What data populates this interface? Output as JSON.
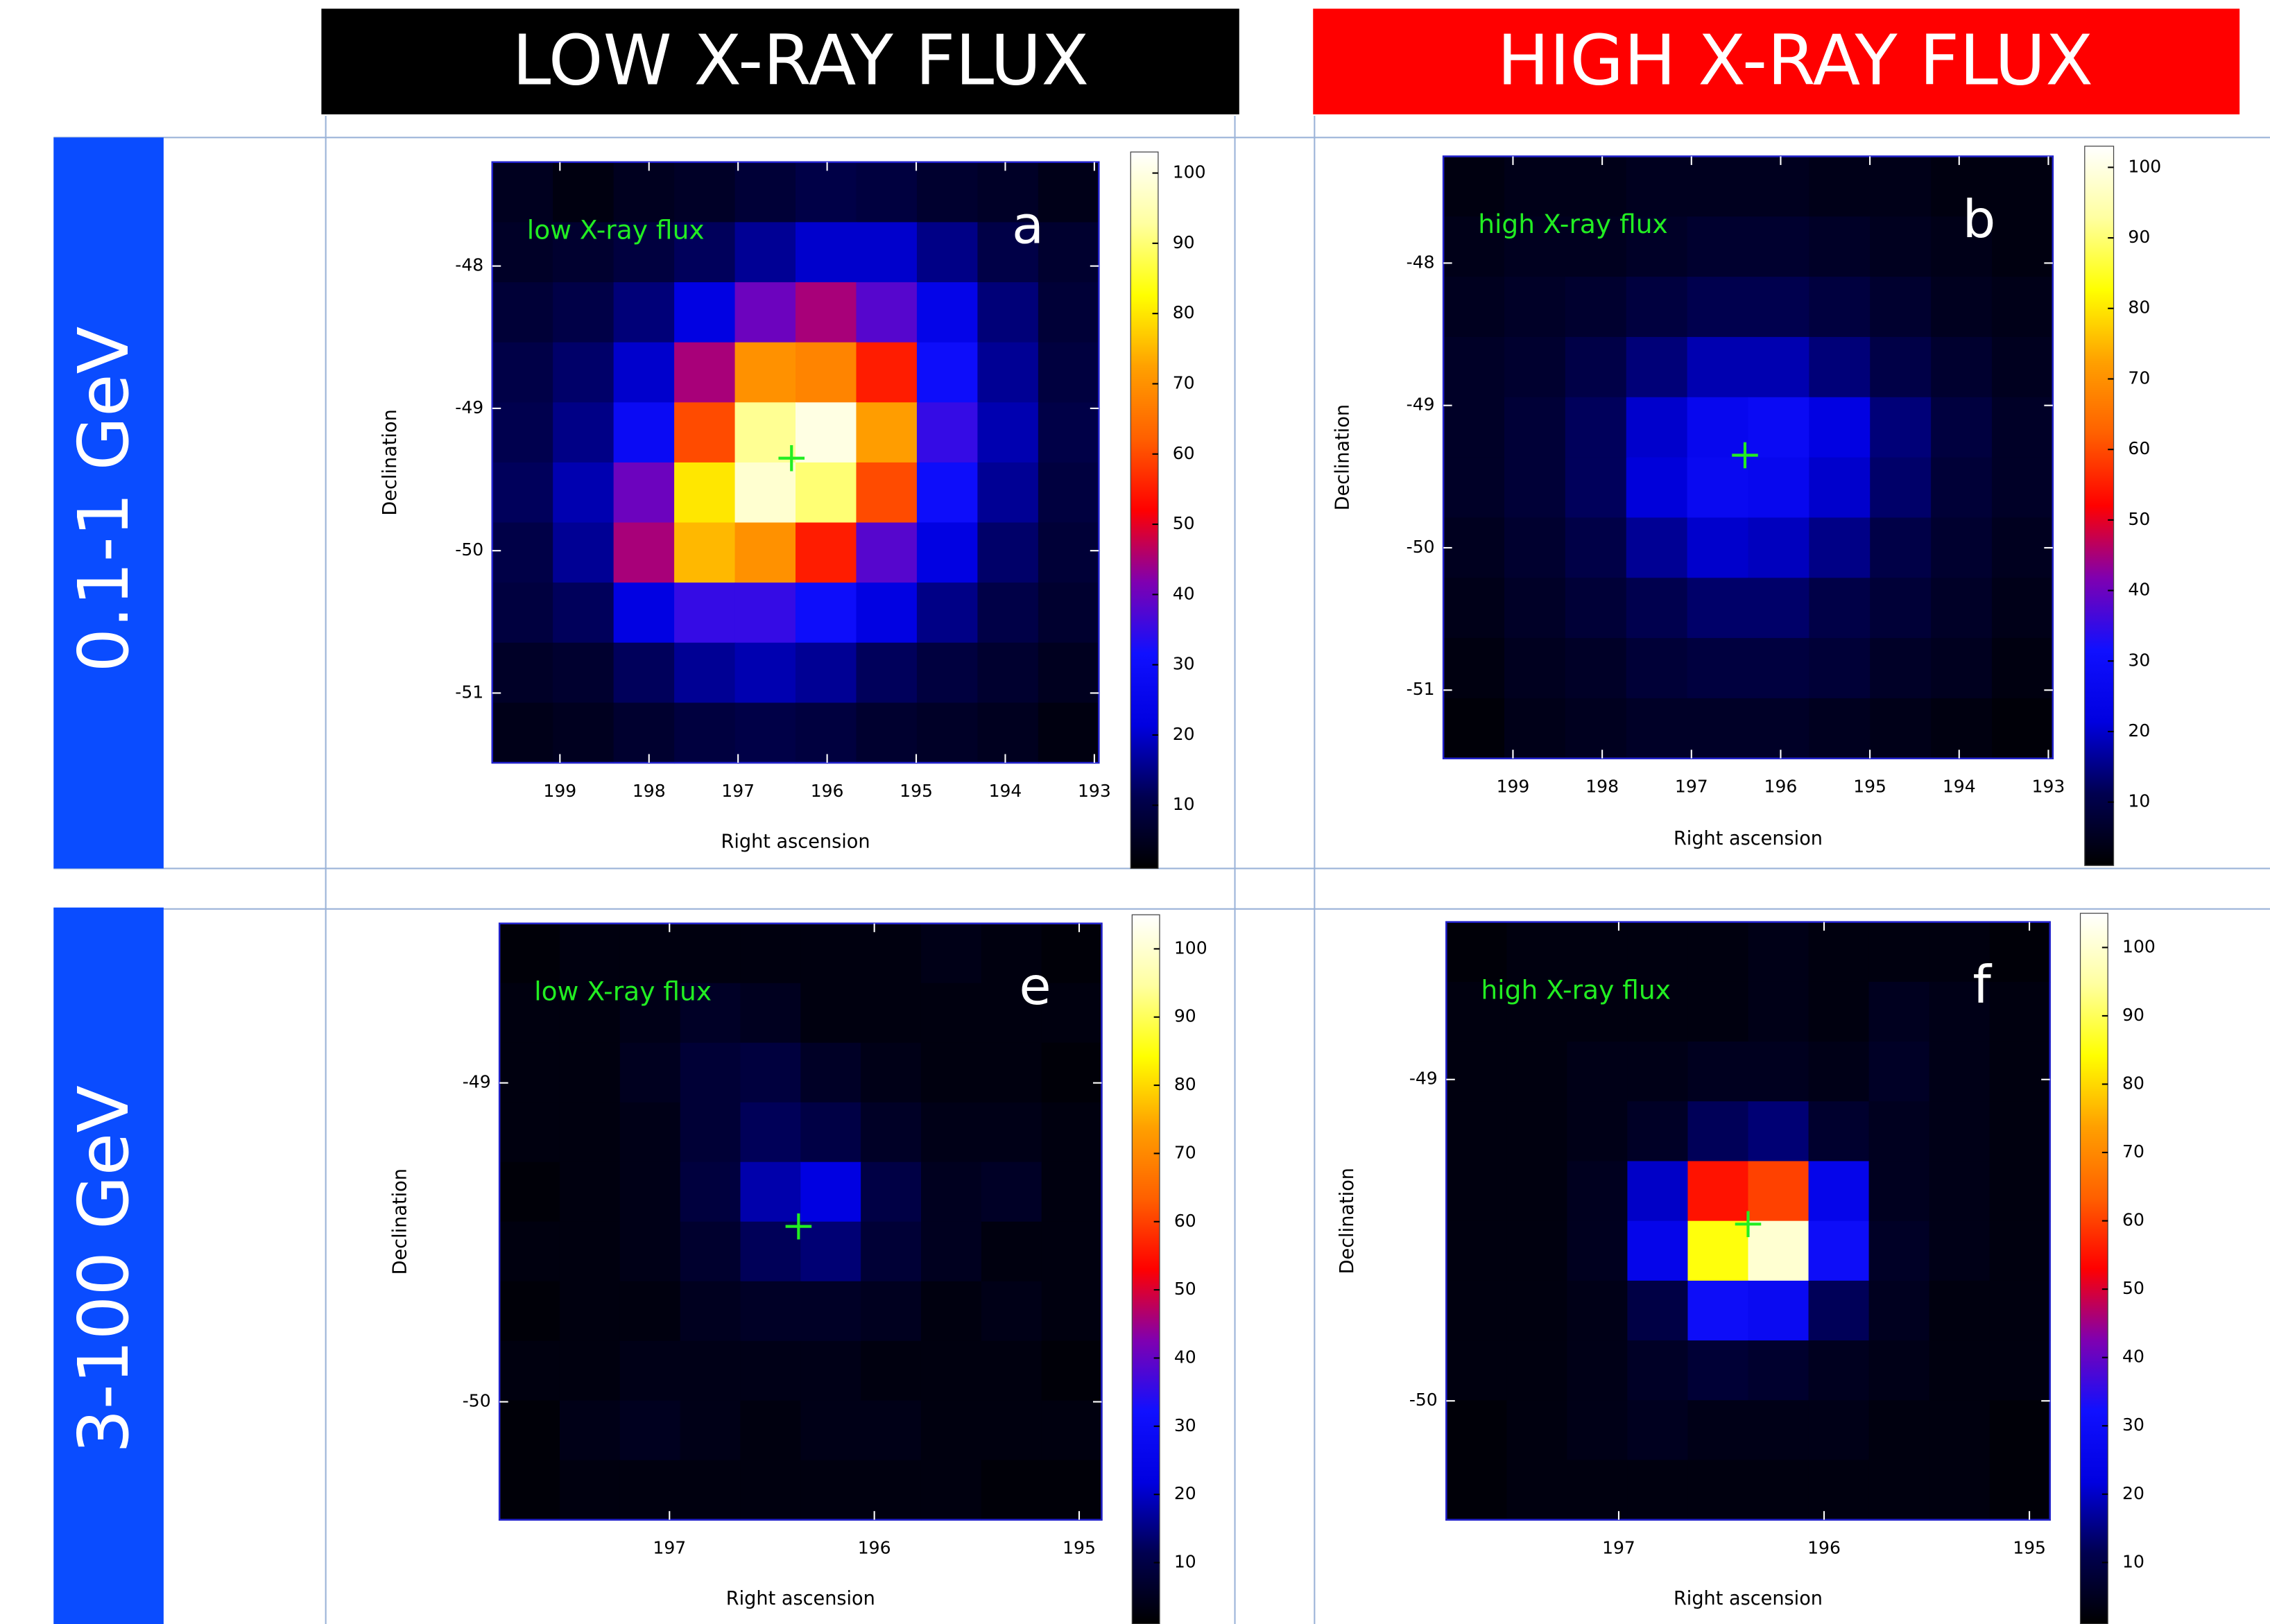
{
  "column_headers": [
    "LOW X-RAY FLUX",
    "HIGH X-RAY FLUX"
  ],
  "row_headers": [
    "0.1-1 GeV",
    "3-100 GeV"
  ],
  "chart_data": [
    {
      "type": "heatmap",
      "panel_label": "a",
      "annotation": "low X-ray flux",
      "xlabel": "Right ascension",
      "ylabel": "Declination",
      "xlim": [
        199.76,
        192.95
      ],
      "ylim": [
        -51.49,
        -47.27
      ],
      "xticks": [
        199,
        198,
        197,
        196,
        195,
        194,
        193
      ],
      "yticks": [
        -48,
        -49,
        -50,
        -51
      ],
      "clim": [
        1,
        103
      ],
      "cticks": [
        10,
        20,
        30,
        40,
        50,
        60,
        70,
        80,
        90,
        100
      ],
      "colormap": [
        "#000000",
        "#000050",
        "#0000e0",
        "#1010ff",
        "#8000b0",
        "#ff0000",
        "#ff6000",
        "#ffa000",
        "#ffff00",
        "#ffffa0",
        "#ffffff"
      ],
      "marker": {
        "x": 196.4,
        "y": -49.35,
        "color": "#22ee22"
      },
      "z": [
        [
          5,
          3,
          5,
          6,
          8,
          10,
          9,
          7,
          6,
          4
        ],
        [
          6,
          7,
          9,
          12,
          16,
          20,
          20,
          15,
          10,
          7
        ],
        [
          8,
          10,
          14,
          22,
          40,
          45,
          38,
          24,
          14,
          8
        ],
        [
          10,
          13,
          20,
          45,
          70,
          68,
          55,
          30,
          16,
          9
        ],
        [
          11,
          15,
          28,
          60,
          92,
          100,
          72,
          35,
          18,
          10
        ],
        [
          12,
          18,
          40,
          80,
          98,
          90,
          60,
          30,
          16,
          9
        ],
        [
          10,
          16,
          45,
          75,
          70,
          55,
          38,
          22,
          13,
          8
        ],
        [
          9,
          12,
          22,
          35,
          35,
          30,
          22,
          15,
          10,
          7
        ],
        [
          6,
          7,
          12,
          16,
          18,
          16,
          12,
          9,
          7,
          5
        ],
        [
          4,
          5,
          7,
          9,
          10,
          9,
          7,
          6,
          5,
          3
        ]
      ]
    },
    {
      "type": "heatmap",
      "panel_label": "b",
      "annotation": "high X-ray flux",
      "xlabel": "Right ascension",
      "ylabel": "Declination",
      "xlim": [
        199.78,
        192.95
      ],
      "ylim": [
        -51.48,
        -47.25
      ],
      "xticks": [
        199,
        198,
        197,
        196,
        195,
        194,
        193
      ],
      "yticks": [
        -48,
        -49,
        -50,
        -51
      ],
      "clim": [
        1,
        103
      ],
      "cticks": [
        10,
        20,
        30,
        40,
        50,
        60,
        70,
        80,
        90,
        100
      ],
      "colormap": [
        "#000000",
        "#000050",
        "#0000e0",
        "#1010ff",
        "#8000b0",
        "#ff0000",
        "#ff6000",
        "#ffa000",
        "#ffff00",
        "#ffffa0",
        "#ffffff"
      ],
      "marker": {
        "x": 196.4,
        "y": -49.35,
        "color": "#22ee22"
      },
      "z": [
        [
          3,
          4,
          4,
          5,
          5,
          5,
          4,
          4,
          3,
          3
        ],
        [
          4,
          5,
          5,
          6,
          7,
          7,
          6,
          5,
          4,
          3
        ],
        [
          5,
          6,
          7,
          9,
          11,
          11,
          9,
          7,
          5,
          4
        ],
        [
          6,
          7,
          10,
          14,
          18,
          18,
          14,
          10,
          7,
          5
        ],
        [
          6,
          8,
          12,
          20,
          26,
          28,
          22,
          14,
          9,
          6
        ],
        [
          6,
          8,
          12,
          21,
          27,
          26,
          20,
          13,
          8,
          6
        ],
        [
          5,
          7,
          10,
          16,
          20,
          19,
          15,
          10,
          7,
          5
        ],
        [
          4,
          6,
          8,
          11,
          13,
          13,
          10,
          8,
          6,
          4
        ],
        [
          3,
          5,
          6,
          8,
          9,
          9,
          8,
          6,
          5,
          3
        ],
        [
          2,
          4,
          5,
          6,
          6,
          6,
          5,
          4,
          3,
          2
        ]
      ]
    },
    {
      "type": "heatmap",
      "panel_label": "e",
      "annotation": "low X-ray flux",
      "xlabel": "Right ascension",
      "ylabel": "Declination",
      "xlim": [
        197.83,
        194.89
      ],
      "ylim": [
        -50.37,
        -48.5
      ],
      "xticks": [
        197,
        196,
        195
      ],
      "yticks": [
        -49,
        -50
      ],
      "clim": [
        1,
        105
      ],
      "cticks": [
        10,
        20,
        30,
        40,
        50,
        60,
        70,
        80,
        90,
        100
      ],
      "colormap": [
        "#000000",
        "#000050",
        "#0000e0",
        "#1010ff",
        "#8000b0",
        "#ff0000",
        "#ff6000",
        "#ffa000",
        "#ffff00",
        "#ffffa0",
        "#ffffff"
      ],
      "marker": {
        "x": 196.37,
        "y": -49.45,
        "color": "#22ee22"
      },
      "z": [
        [
          2,
          3,
          3,
          3,
          3,
          3,
          3,
          4,
          3,
          2
        ],
        [
          3,
          3,
          4,
          6,
          5,
          3,
          3,
          3,
          3,
          3
        ],
        [
          3,
          3,
          5,
          8,
          9,
          6,
          4,
          3,
          3,
          2
        ],
        [
          3,
          3,
          4,
          8,
          12,
          10,
          6,
          4,
          4,
          3
        ],
        [
          2,
          3,
          4,
          9,
          18,
          22,
          10,
          5,
          6,
          3
        ],
        [
          3,
          3,
          4,
          7,
          12,
          14,
          8,
          5,
          3,
          3
        ],
        [
          2,
          3,
          3,
          5,
          6,
          6,
          5,
          3,
          4,
          3
        ],
        [
          3,
          3,
          4,
          4,
          4,
          4,
          3,
          3,
          3,
          2
        ],
        [
          2,
          4,
          5,
          4,
          3,
          4,
          4,
          3,
          3,
          3
        ],
        [
          2,
          3,
          3,
          3,
          3,
          3,
          3,
          3,
          2,
          2
        ]
      ]
    },
    {
      "type": "heatmap",
      "panel_label": "f",
      "annotation": "high X-ray flux",
      "xlabel": "Right ascension",
      "ylabel": "Declination",
      "xlim": [
        197.84,
        194.9
      ],
      "ylim": [
        -50.37,
        -48.51
      ],
      "xticks": [
        197,
        196,
        195
      ],
      "yticks": [
        -49,
        -50
      ],
      "clim": [
        1,
        105
      ],
      "cticks": [
        10,
        20,
        30,
        40,
        50,
        60,
        70,
        80,
        90,
        100
      ],
      "colormap": [
        "#000000",
        "#000050",
        "#0000e0",
        "#1010ff",
        "#8000b0",
        "#ff0000",
        "#ff6000",
        "#ffa000",
        "#ffff00",
        "#ffffa0",
        "#ffffff"
      ],
      "marker": {
        "x": 196.37,
        "y": -49.45,
        "color": "#22ee22"
      },
      "z": [
        [
          2,
          3,
          3,
          3,
          3,
          4,
          3,
          3,
          3,
          2
        ],
        [
          3,
          3,
          3,
          3,
          3,
          4,
          3,
          5,
          4,
          3
        ],
        [
          3,
          3,
          4,
          4,
          5,
          5,
          4,
          6,
          4,
          3
        ],
        [
          3,
          3,
          4,
          6,
          12,
          14,
          7,
          5,
          4,
          3
        ],
        [
          3,
          3,
          5,
          20,
          55,
          60,
          25,
          5,
          4,
          3
        ],
        [
          3,
          3,
          5,
          25,
          85,
          100,
          30,
          6,
          4,
          3
        ],
        [
          3,
          3,
          4,
          10,
          30,
          28,
          12,
          5,
          3,
          3
        ],
        [
          3,
          3,
          4,
          6,
          8,
          7,
          5,
          4,
          3,
          3
        ],
        [
          2,
          3,
          4,
          5,
          4,
          4,
          4,
          3,
          3,
          2
        ],
        [
          2,
          3,
          3,
          3,
          3,
          3,
          3,
          3,
          3,
          2
        ]
      ]
    }
  ]
}
